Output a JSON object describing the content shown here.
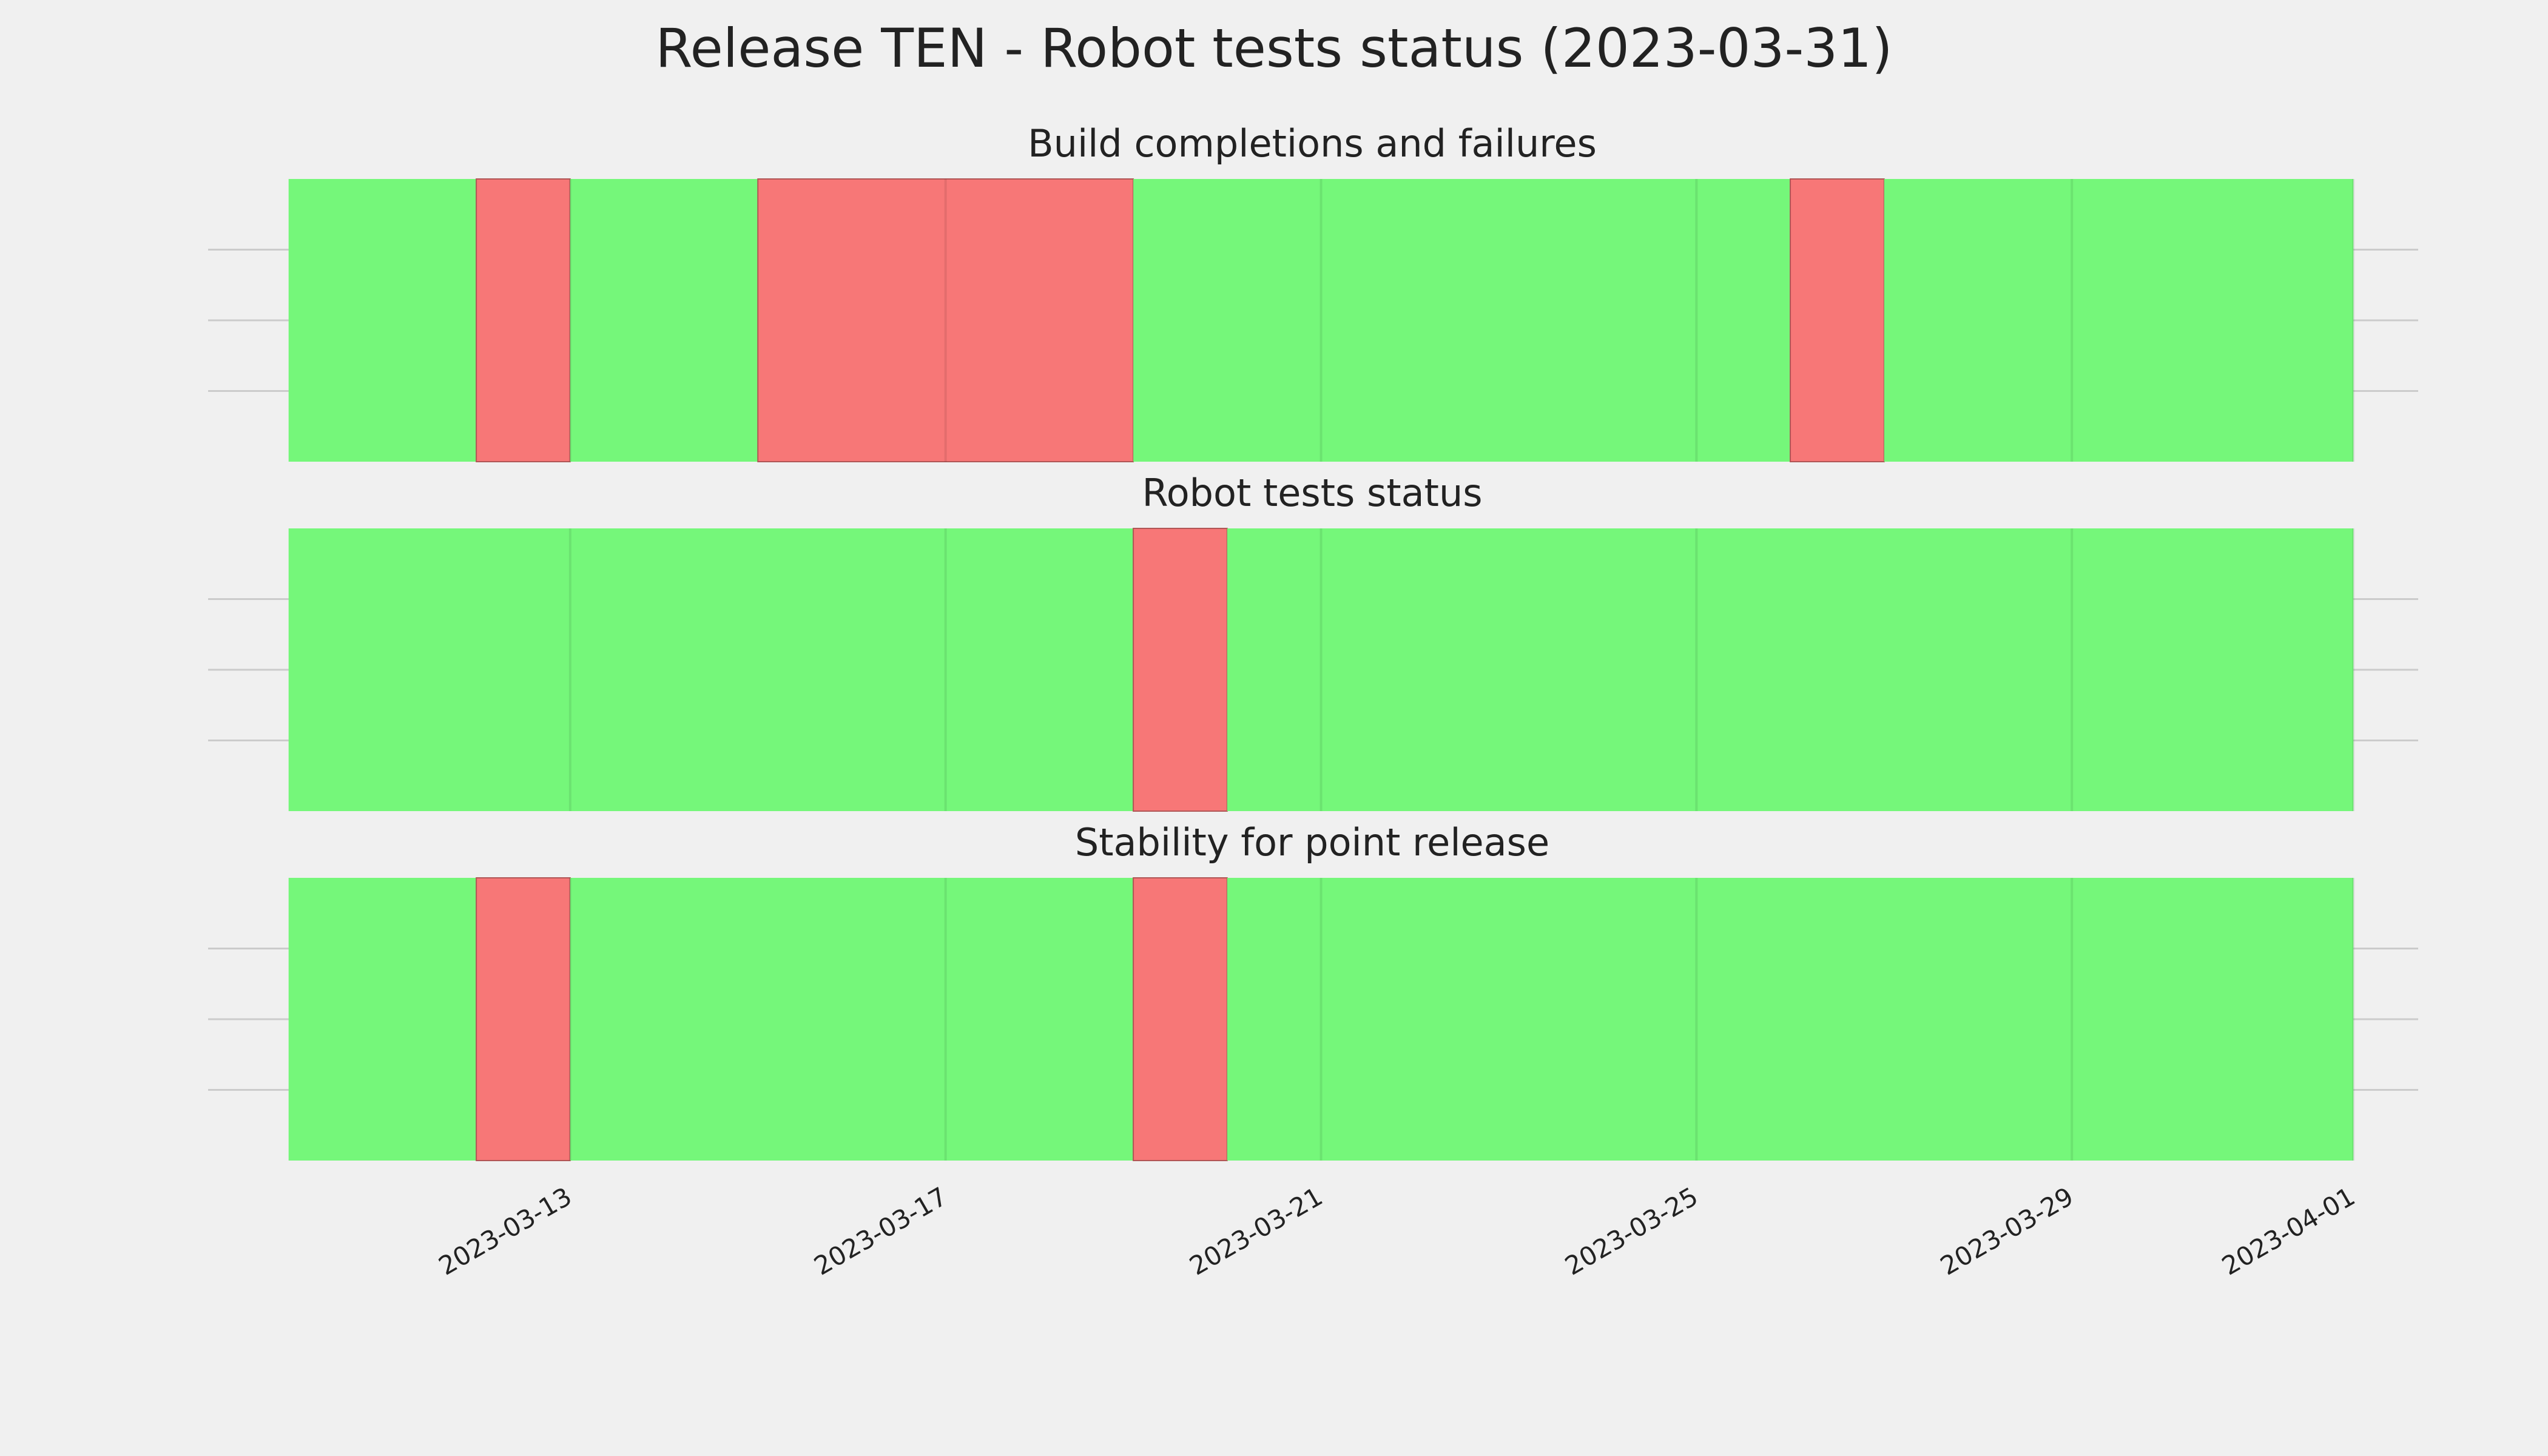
{
  "title": "Release TEN - Robot tests status (2023-03-31)",
  "chart_data": [
    {
      "type": "timeline",
      "title": "Build completions and failures",
      "xlim": [
        "2023-03-09",
        "2023-04-02"
      ],
      "ylim": [
        0,
        1
      ],
      "yticks": [
        0.25,
        0.5,
        0.75
      ],
      "grid": true,
      "segments": [
        {
          "start": "2023-03-10",
          "end": "2023-03-12",
          "color": "#75f77a"
        },
        {
          "start": "2023-03-12",
          "end": "2023-03-13",
          "color": "#f77777"
        },
        {
          "start": "2023-03-13",
          "end": "2023-03-15",
          "color": "#75f77a"
        },
        {
          "start": "2023-03-15",
          "end": "2023-03-19",
          "color": "#f77777"
        },
        {
          "start": "2023-03-19",
          "end": "2023-03-26",
          "color": "#75f77a"
        },
        {
          "start": "2023-03-26",
          "end": "2023-03-27",
          "color": "#f77777"
        },
        {
          "start": "2023-03-27",
          "end": "2023-04-01",
          "color": "#75f77a"
        }
      ]
    },
    {
      "type": "timeline",
      "title": "Robot tests status",
      "xlim": [
        "2023-03-09",
        "2023-04-02"
      ],
      "ylim": [
        0,
        1
      ],
      "yticks": [
        0.25,
        0.5,
        0.75
      ],
      "grid": true,
      "segments": [
        {
          "start": "2023-03-10",
          "end": "2023-03-19",
          "color": "#75f77a"
        },
        {
          "start": "2023-03-19",
          "end": "2023-03-20",
          "color": "#f77777"
        },
        {
          "start": "2023-03-20",
          "end": "2023-04-01",
          "color": "#75f77a"
        }
      ]
    },
    {
      "type": "timeline",
      "title": "Stability for point release",
      "xlim": [
        "2023-03-09",
        "2023-04-02"
      ],
      "ylim": [
        0,
        1
      ],
      "yticks": [
        0.25,
        0.5,
        0.75
      ],
      "grid": true,
      "xticks": [
        "2023-03-13",
        "2023-03-17",
        "2023-03-21",
        "2023-03-25",
        "2023-03-29",
        "2023-04-01"
      ],
      "segments": [
        {
          "start": "2023-03-10",
          "end": "2023-03-12",
          "color": "#75f77a"
        },
        {
          "start": "2023-03-12",
          "end": "2023-03-13",
          "color": "#f77777"
        },
        {
          "start": "2023-03-13",
          "end": "2023-03-19",
          "color": "#75f77a"
        },
        {
          "start": "2023-03-19",
          "end": "2023-03-20",
          "color": "#f77777"
        },
        {
          "start": "2023-03-20",
          "end": "2023-04-01",
          "color": "#75f77a"
        }
      ]
    }
  ]
}
